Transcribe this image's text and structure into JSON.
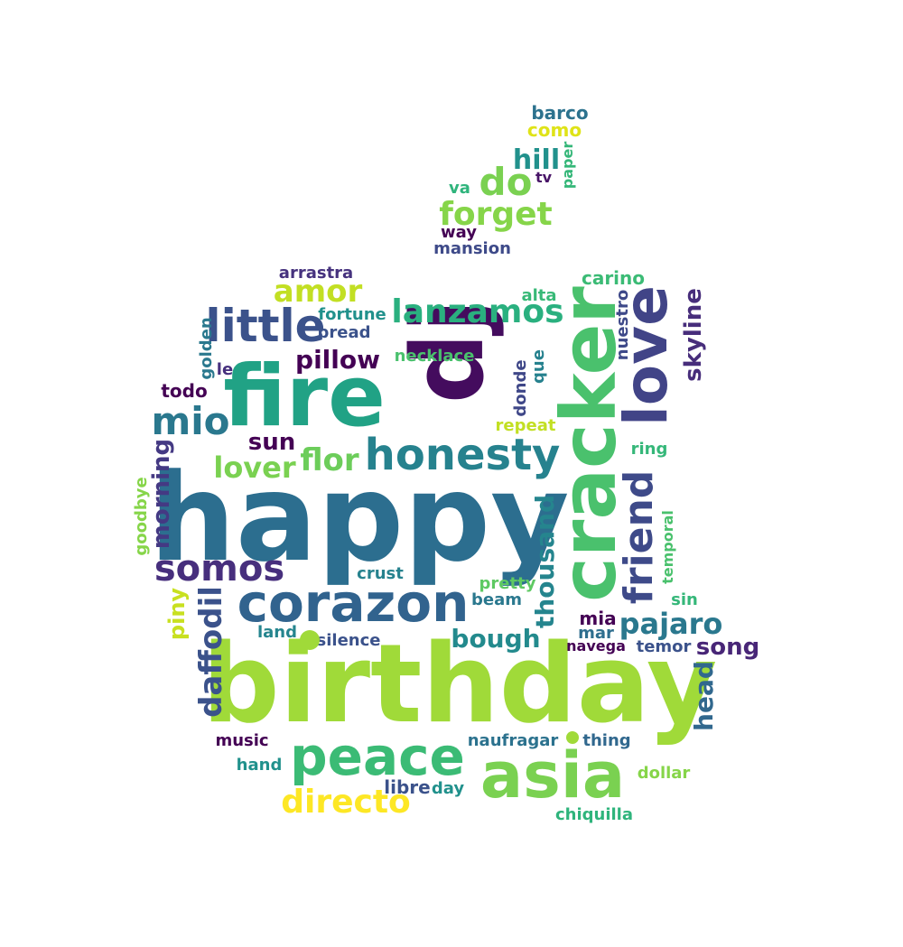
{
  "palette": [
    "#440154",
    "#3b528b",
    "#2c728e",
    "#21918c",
    "#28ae80",
    "#5ec962",
    "#a0da39",
    "#fde725"
  ],
  "words": [
    {
      "text": "happy",
      "color": "#2c6e8f"
    },
    {
      "text": "birthday",
      "color": "#a0da39"
    },
    {
      "text": "fire",
      "color": "#21a285"
    },
    {
      "text": "dj",
      "color": "#440c5e"
    },
    {
      "text": "cracker",
      "color": "#4ac16d"
    },
    {
      "text": "love",
      "color": "#414487"
    },
    {
      "text": "asia",
      "color": "#7ad151"
    },
    {
      "text": "corazon",
      "color": "#31638e"
    },
    {
      "text": "peace",
      "color": "#3bbb75"
    },
    {
      "text": "honesty",
      "color": "#26828e"
    },
    {
      "text": "little",
      "color": "#3b528b"
    },
    {
      "text": "somos",
      "color": "#472f7d"
    },
    {
      "text": "mio",
      "color": "#2a788e"
    },
    {
      "text": "friend",
      "color": "#3e4a89"
    },
    {
      "text": "lanzamos",
      "color": "#2ab07f"
    },
    {
      "text": "daffodil",
      "color": "#3b528b"
    },
    {
      "text": "do",
      "color": "#7ad151"
    },
    {
      "text": "forget",
      "color": "#86d549"
    },
    {
      "text": "amor",
      "color": "#c2df23"
    },
    {
      "text": "directo",
      "color": "#fde725"
    },
    {
      "text": "pajaro",
      "color": "#2a788e"
    },
    {
      "text": "lover",
      "color": "#7ad151"
    },
    {
      "text": "flor",
      "color": "#6ccd5a"
    },
    {
      "text": "pillow",
      "color": "#440154"
    },
    {
      "text": "bough",
      "color": "#238a8d"
    },
    {
      "text": "thousand",
      "color": "#25858e"
    },
    {
      "text": "skyline",
      "color": "#472d7b"
    },
    {
      "text": "song",
      "color": "#482677"
    },
    {
      "text": "morning",
      "color": "#443983"
    },
    {
      "text": "hill",
      "color": "#21918c"
    },
    {
      "text": "sun",
      "color": "#440154"
    },
    {
      "text": "head",
      "color": "#31688e"
    },
    {
      "text": "piny",
      "color": "#c8e020"
    },
    {
      "text": "barco",
      "color": "#2c728e"
    },
    {
      "text": "como",
      "color": "#dfe318"
    },
    {
      "text": "paper",
      "color": "#35b779"
    },
    {
      "text": "tv",
      "color": "#481467"
    },
    {
      "text": "va",
      "color": "#2fb47c"
    },
    {
      "text": "way",
      "color": "#440154"
    },
    {
      "text": "mansion",
      "color": "#3e4a89"
    },
    {
      "text": "arrastra",
      "color": "#46327e"
    },
    {
      "text": "carino",
      "color": "#3bbb75"
    },
    {
      "text": "alta",
      "color": "#38b977"
    },
    {
      "text": "fortune",
      "color": "#21918c"
    },
    {
      "text": "bread",
      "color": "#3b528b"
    },
    {
      "text": "golden",
      "color": "#2a788e"
    },
    {
      "text": "le",
      "color": "#46307e"
    },
    {
      "text": "necklace",
      "color": "#4ac16d"
    },
    {
      "text": "nuestro",
      "color": "#3e4989"
    },
    {
      "text": "que",
      "color": "#26818e"
    },
    {
      "text": "donde",
      "color": "#3f4788"
    },
    {
      "text": "todo",
      "color": "#440154"
    },
    {
      "text": "repeat",
      "color": "#c2df23"
    },
    {
      "text": "ring",
      "color": "#35b779"
    },
    {
      "text": "goodbye",
      "color": "#86d549"
    },
    {
      "text": "temporal",
      "color": "#4ac16d"
    },
    {
      "text": "crust",
      "color": "#26828e"
    },
    {
      "text": "pretty",
      "color": "#5ec962"
    },
    {
      "text": "beam",
      "color": "#2a788e"
    },
    {
      "text": "sin",
      "color": "#35b779"
    },
    {
      "text": "mia",
      "color": "#440154"
    },
    {
      "text": "mar",
      "color": "#2e6e8e"
    },
    {
      "text": "land",
      "color": "#25858e"
    },
    {
      "text": "silence",
      "color": "#3b528b"
    },
    {
      "text": "navega",
      "color": "#440154"
    },
    {
      "text": "temor",
      "color": "#3b528b"
    },
    {
      "text": "music",
      "color": "#440154"
    },
    {
      "text": "hand",
      "color": "#21918c"
    },
    {
      "text": "naufragar",
      "color": "#2c728e"
    },
    {
      "text": "thing",
      "color": "#31688e"
    },
    {
      "text": "dollar",
      "color": "#86d549"
    },
    {
      "text": "libre",
      "color": "#3b528b"
    },
    {
      "text": "day",
      "color": "#21918c"
    },
    {
      "text": "chiquilla",
      "color": "#2fb47c"
    }
  ]
}
